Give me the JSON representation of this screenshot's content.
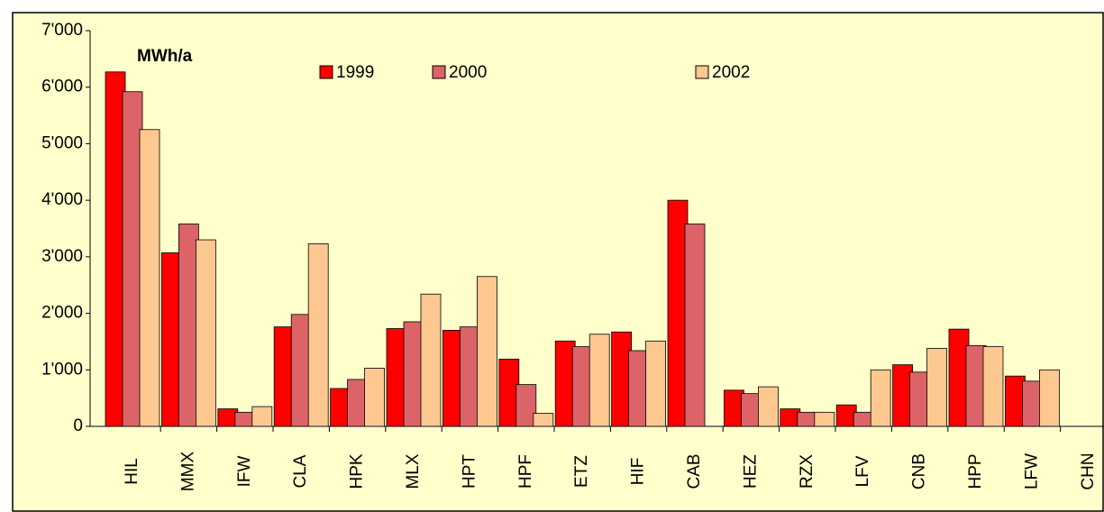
{
  "chart_data": {
    "type": "bar",
    "y_label": "MWh/a",
    "categories": [
      "HIL",
      "MMX",
      "IFW",
      "CLA",
      "HPK",
      "MLX",
      "HPT",
      "HPF",
      "ETZ",
      "HIF",
      "CAB",
      "HEZ",
      "RZX",
      "LFV",
      "CNB",
      "HPP",
      "LFW",
      "CHN"
    ],
    "series": [
      {
        "name": "1999",
        "color": "#ff0000",
        "values": [
          6270,
          3070,
          310,
          1760,
          670,
          1730,
          1700,
          1190,
          1510,
          1670,
          4000,
          640,
          310,
          380,
          1090,
          1720,
          890,
          null
        ]
      },
      {
        "name": "2000",
        "color": "#dc6468",
        "values": [
          5920,
          3580,
          250,
          1980,
          830,
          1850,
          1760,
          740,
          1410,
          1340,
          3580,
          580,
          250,
          250,
          960,
          1430,
          800,
          null
        ]
      },
      {
        "name": "2002",
        "color": "#fcc890",
        "values": [
          5250,
          3300,
          350,
          3230,
          1030,
          2340,
          2650,
          230,
          1630,
          1510,
          null,
          700,
          250,
          1000,
          1380,
          1410,
          1000,
          null
        ]
      }
    ],
    "ylim": [
      0,
      7000
    ],
    "yticks": [
      0,
      {
        "value": 1000,
        "label": "1'000"
      },
      {
        "value": 2000,
        "label": "2'000"
      },
      {
        "value": 3000,
        "label": "3'000"
      },
      {
        "value": 4000,
        "label": "4'000"
      },
      {
        "value": 5000,
        "label": "5'000"
      },
      {
        "value": 6000,
        "label": "6'000"
      },
      {
        "value": 7000,
        "label": "7'000"
      }
    ],
    "background": "#ffffcc"
  }
}
